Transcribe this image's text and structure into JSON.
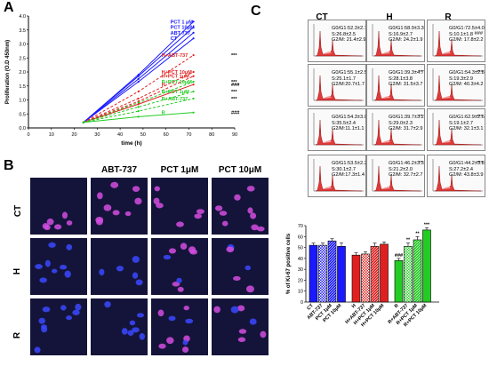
{
  "panels": {
    "a": "A",
    "b": "B",
    "c": "C"
  },
  "panel_a": {
    "ylabel": "Proliferation (O.D 450nm)",
    "xlabel": "time (h)",
    "xticks": [
      0,
      10,
      20,
      30,
      40,
      50,
      60,
      70,
      80,
      90
    ],
    "yticks": [
      "0.0",
      "0.5",
      "1.0",
      "1.5",
      "2.0",
      "2.5",
      "3.0",
      "3.5",
      "4.0"
    ],
    "series_labels": [
      {
        "label": "PCT 1 μM",
        "color": "#1a1aff",
        "sig": ""
      },
      {
        "label": "PCT 10μM",
        "color": "#1a1aff",
        "sig": ""
      },
      {
        "label": "ABT-737",
        "color": "#1a1aff",
        "sig": ""
      },
      {
        "label": "CT",
        "color": "#1a1aff",
        "sig": ""
      },
      {
        "label": "H+ABT-737",
        "color": "#e02020",
        "sig": "***"
      },
      {
        "label": "H+PCT 10μM",
        "color": "#e02020",
        "sig": ""
      },
      {
        "label": "H+PCT 1μM",
        "color": "#e02020",
        "sig": ""
      },
      {
        "label": "R+PCT 10μM",
        "color": "#22cc22",
        "sig": "***"
      },
      {
        "label": "H",
        "color": "#e02020",
        "sig": "###"
      },
      {
        "label": "R+PCT 1μM",
        "color": "#22cc22",
        "sig": "***"
      },
      {
        "label": "R+ABT-737",
        "color": "#22cc22",
        "sig": "***"
      },
      {
        "label": "R",
        "color": "#22cc22",
        "sig": "###"
      }
    ]
  },
  "panel_b": {
    "col_headers": [
      "ABT-737",
      "PCT 1μM",
      "PCT 10μM"
    ],
    "row_labels": [
      "CT",
      "H",
      "R"
    ]
  },
  "panel_c": {
    "col_headers": [
      "CT",
      "H",
      "R"
    ],
    "cytometry": [
      [
        {
          "g1": "G0/G1:52.3±2.7",
          "s": "S:26.8±2.5",
          "g2": "G2/M: 21.4±2.9",
          "sig": ""
        },
        {
          "g1": "G0/G1:58.9±3.3",
          "s": "S:16.9±2.7",
          "g2": "G2/M: 24.2±1.9",
          "sig": ""
        },
        {
          "g1": "G0/G1:72.5±4.0",
          "s": "S:10.1±1.8",
          "g2": "G2/M: 17.8±2.2",
          "sig": "###"
        }
      ],
      [
        {
          "g1": "G0/G1:55.1±2.5",
          "s": "S:25.1±1.7",
          "g2": "G2/M:20.7±1.7",
          "sig": ""
        },
        {
          "g1": "G0/G1:39.3±4.7",
          "s": "S:28.1±3.8",
          "g2": "G2/M: 31.5±3.7",
          "sig": "**"
        },
        {
          "g1": "G0/G1:54.3±2.8",
          "s": "S:19.3±2.9",
          "g2": "G2/M: 40.3±4.2",
          "sig": "***"
        }
      ],
      [
        {
          "g1": "G0/G1:54.3±3.0",
          "s": "S:35.5±2.4",
          "g2": "G2/M:11.1±1.1",
          "sig": ""
        },
        {
          "g1": "G0/G1:39.7±3.2",
          "s": "S:29.0±2.3",
          "g2": "G2/M: 31.7±2.9",
          "sig": "**"
        },
        {
          "g1": "G0/G1:62.9±2.6",
          "s": "S:19.1±2.7",
          "g2": "G2/M: 32.1±3.1",
          "sig": "***"
        }
      ],
      [
        {
          "g1": "G0/G1:53.5±2.2",
          "s": "S:30.1±2.7",
          "g2": "G2/M:17.3±1.4",
          "sig": ""
        },
        {
          "g1": "G0/G1:46.2±3.3",
          "s": "S:21.2±2.0",
          "g2": "G2/M: 32.7±2.7",
          "sig": "**"
        },
        {
          "g1": "G0/G1:44.2±3.8",
          "s": "S:27.2±2.4",
          "g2": "G2/M: 43.8±3.9",
          "sig": "***"
        }
      ]
    ],
    "bar_ylabel": "% of Ki-67 positive cells",
    "bar_yticks": [
      "0",
      "10",
      "20",
      "30",
      "40",
      "50",
      "60",
      "70"
    ]
  },
  "chart_data": [
    {
      "type": "line",
      "title": "",
      "xlabel": "time (h)",
      "ylabel": "Proliferation (O.D 450nm)",
      "xlim": [
        0,
        90
      ],
      "ylim": [
        0,
        4.0
      ],
      "x": [
        24,
        48,
        72
      ],
      "series": [
        {
          "name": "PCT 1 μM",
          "color": "#1a1aff",
          "style": "solid",
          "values": [
            0.2,
            1.9,
            3.8
          ]
        },
        {
          "name": "PCT 10μM",
          "color": "#1a1aff",
          "style": "solid",
          "values": [
            0.2,
            1.85,
            3.6
          ]
        },
        {
          "name": "ABT-737",
          "color": "#1a1aff",
          "style": "solid",
          "values": [
            0.2,
            1.75,
            3.4
          ]
        },
        {
          "name": "CT",
          "color": "#1a1aff",
          "style": "solid",
          "values": [
            0.2,
            1.65,
            3.2
          ]
        },
        {
          "name": "H+ABT-737",
          "color": "#e02020",
          "style": "dashed",
          "values": [
            0.2,
            1.3,
            2.6
          ]
        },
        {
          "name": "H+PCT 10μM",
          "color": "#e02020",
          "style": "dashed",
          "values": [
            0.2,
            1.05,
            2.0
          ]
        },
        {
          "name": "H+PCT 1μM",
          "color": "#e02020",
          "style": "dashed",
          "values": [
            0.2,
            0.95,
            1.85
          ]
        },
        {
          "name": "R+PCT 10μM",
          "color": "#22cc22",
          "style": "dashed",
          "values": [
            0.2,
            0.9,
            1.65
          ]
        },
        {
          "name": "H",
          "color": "#e02020",
          "style": "solid",
          "values": [
            0.2,
            0.85,
            1.55
          ]
        },
        {
          "name": "R+PCT 1μM",
          "color": "#22cc22",
          "style": "dashed",
          "values": [
            0.2,
            0.75,
            1.3
          ]
        },
        {
          "name": "R+ABT-737",
          "color": "#22cc22",
          "style": "dashed",
          "values": [
            0.2,
            0.6,
            1.05
          ]
        },
        {
          "name": "R",
          "color": "#22cc22",
          "style": "solid",
          "values": [
            0.2,
            0.4,
            0.55
          ]
        }
      ]
    },
    {
      "type": "bar",
      "title": "",
      "xlabel": "",
      "ylabel": "% of Ki-67 positive cells",
      "ylim": [
        0,
        70
      ],
      "categories": [
        "CT",
        "ABT-737",
        "PCT 1μM",
        "PCT 10μM",
        "H",
        "H+ABT-737",
        "H+PCT 1μM",
        "H+PCT 10μM",
        "R",
        "R+ABT-737",
        "R+PCT 1μM",
        "R+PCT 10μM"
      ],
      "values": [
        52,
        52,
        56,
        51,
        43,
        44,
        51,
        53,
        38,
        51,
        57,
        66
      ],
      "errors": [
        2,
        2,
        2,
        3,
        2,
        2,
        3,
        2,
        2,
        3,
        3,
        2
      ],
      "colors": [
        "#1a1aff",
        "#1a1aff",
        "#1a1aff",
        "#1a1aff",
        "#e02020",
        "#e02020",
        "#e02020",
        "#e02020",
        "#22cc22",
        "#22cc22",
        "#22cc22",
        "#22cc22"
      ],
      "annotations": [
        "",
        "",
        "",
        "",
        "",
        "",
        "",
        "",
        "###",
        "**",
        "**",
        "***"
      ]
    }
  ]
}
